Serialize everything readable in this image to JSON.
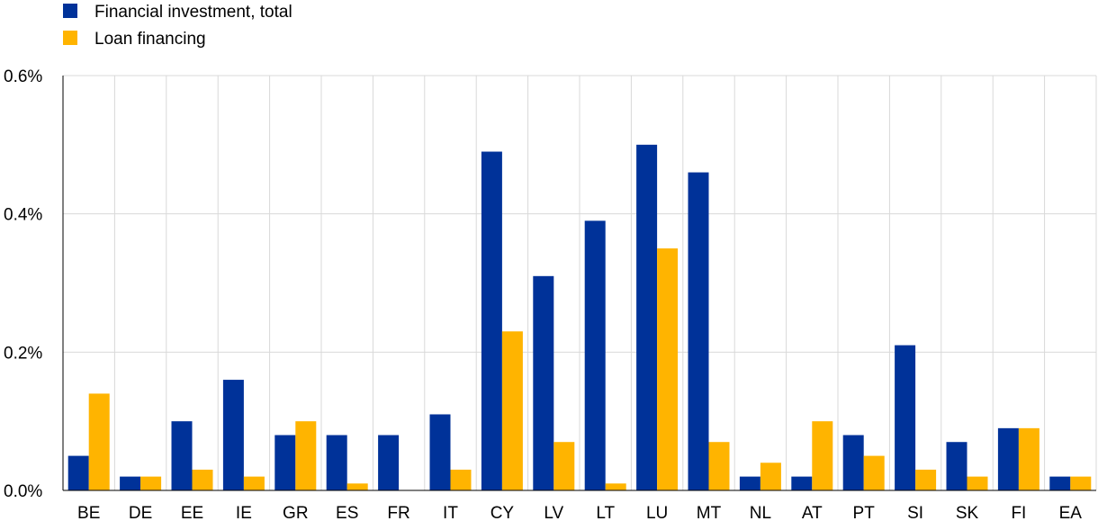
{
  "colors": {
    "series_1": "#003299",
    "series_2": "#FFB400",
    "grid": "#d9d9d9",
    "axis": "#000000"
  },
  "chart_data": {
    "type": "bar",
    "title": "",
    "xlabel": "",
    "ylabel": "",
    "categories": [
      "BE",
      "DE",
      "EE",
      "IE",
      "GR",
      "ES",
      "FR",
      "IT",
      "CY",
      "LV",
      "LT",
      "LU",
      "MT",
      "NL",
      "AT",
      "PT",
      "SI",
      "SK",
      "FI",
      "EA"
    ],
    "series": [
      {
        "name": "Financial investment, total",
        "values": [
          0.05,
          0.02,
          0.1,
          0.16,
          0.08,
          0.08,
          0.08,
          0.11,
          0.49,
          0.31,
          0.39,
          0.5,
          0.46,
          0.02,
          0.02,
          0.08,
          0.21,
          0.07,
          0.09,
          0.02
        ]
      },
      {
        "name": "Loan financing",
        "values": [
          0.14,
          0.02,
          0.03,
          0.02,
          0.1,
          0.01,
          0.0,
          0.03,
          0.23,
          0.07,
          0.01,
          0.35,
          0.07,
          0.04,
          0.1,
          0.05,
          0.03,
          0.02,
          0.09,
          0.02
        ]
      }
    ],
    "ylim": [
      0,
      0.6
    ],
    "yticks": [
      0,
      0.2,
      0.4,
      0.6
    ],
    "ytick_labels": [
      "0.0%",
      "0.2%",
      "0.4%",
      "0.6%"
    ],
    "grid": true,
    "legend_position": "top-left"
  }
}
